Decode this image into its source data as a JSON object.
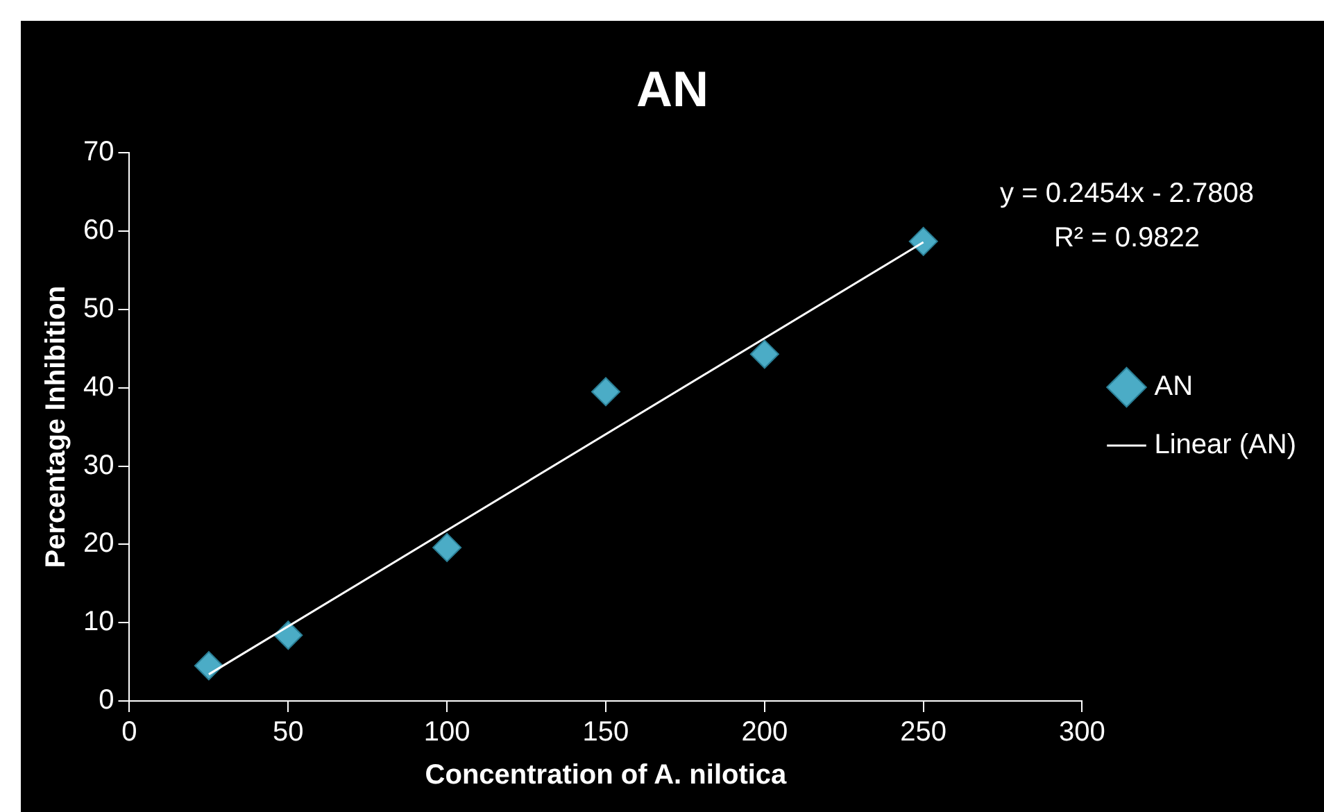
{
  "chart_data": {
    "type": "scatter",
    "title": "AN",
    "xlabel": "Concentration of A. nilotica",
    "ylabel": "Percentage Inhibition",
    "x": [
      25,
      50,
      100,
      150,
      200,
      250
    ],
    "series": [
      {
        "name": "AN",
        "color": "#4bacc6",
        "marker": "diamond",
        "values": [
          4.5,
          8.4,
          19.6,
          39.5,
          44.3,
          58.7
        ]
      },
      {
        "name": "Linear (AN)",
        "color": "#ffffff",
        "type": "line",
        "marker": "none",
        "x": [
          25,
          250
        ],
        "values": [
          3.4,
          58.6
        ]
      }
    ],
    "xlim": [
      0,
      300
    ],
    "xticks": [
      0,
      50,
      100,
      150,
      200,
      250,
      300
    ],
    "ylim": [
      0,
      70
    ],
    "yticks": [
      0,
      10,
      20,
      30,
      40,
      50,
      60,
      70
    ],
    "grid": false,
    "legend": "right",
    "annotations": [
      "y = 0.2454x - 2.7808",
      "R² = 0.9822"
    ]
  }
}
